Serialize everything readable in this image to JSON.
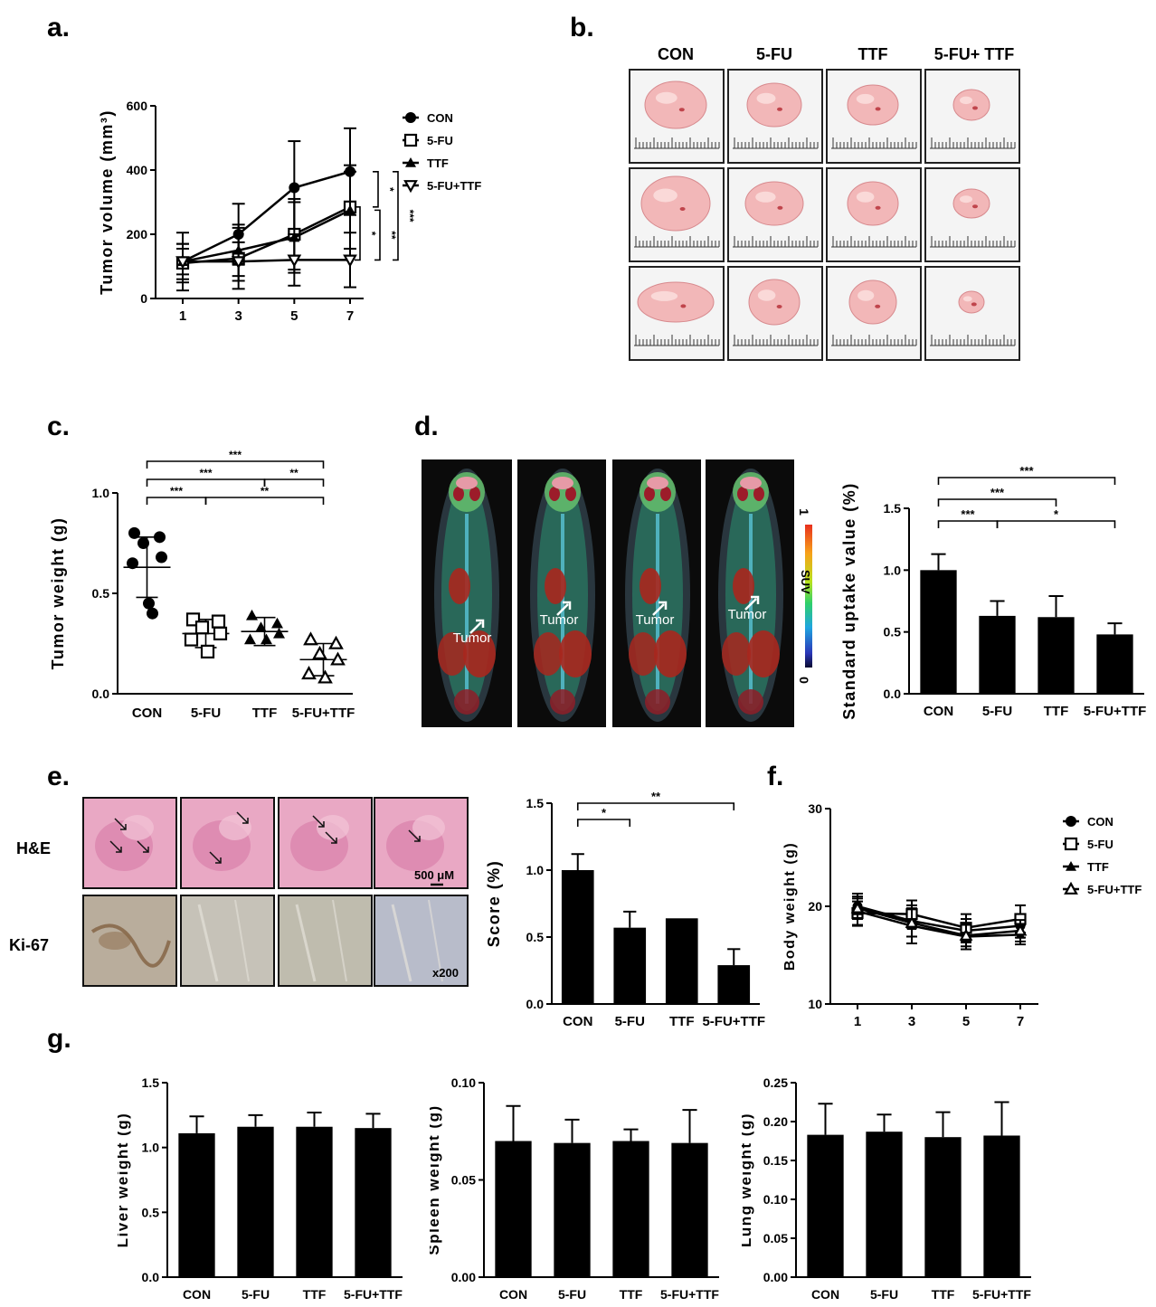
{
  "panels": {
    "a": {
      "letter": "a."
    },
    "b": {
      "letter": "b.",
      "columns": [
        "CON",
        "5-FU",
        "TTF",
        "5-FU+ TTF"
      ]
    },
    "c": {
      "letter": "c."
    },
    "d": {
      "letter": "d.",
      "tumor_label": "Tumor",
      "scale_label": "SUV",
      "scale_max": "1",
      "scale_min": "0"
    },
    "e": {
      "letter": "e.",
      "row_labels": [
        "H&E",
        "Ki-67"
      ],
      "scale_bar": "500 μM",
      "magnification": "x200"
    },
    "f": {
      "letter": "f."
    },
    "g": {
      "letter": "g."
    }
  },
  "chart_data": [
    {
      "id": "a",
      "type": "line",
      "ylabel": "Tumor volume (mm³)",
      "x": [
        1,
        3,
        5,
        7
      ],
      "xticks": [
        "1",
        "3",
        "5",
        "7"
      ],
      "ylim": [
        0,
        600
      ],
      "yticks": [
        "0",
        "200",
        "400",
        "600"
      ],
      "series": [
        {
          "name": "CON",
          "marker": "filled-circle",
          "values": [
            115,
            200,
            345,
            395
          ],
          "err": [
            90,
            95,
            145,
            135
          ]
        },
        {
          "name": "5-FU",
          "marker": "open-square",
          "values": [
            110,
            125,
            200,
            285
          ],
          "err": [
            60,
            95,
            110,
            130
          ]
        },
        {
          "name": "TTF",
          "marker": "filled-triangle",
          "values": [
            115,
            150,
            190,
            275
          ],
          "err": [
            55,
            80,
            110,
            120
          ]
        },
        {
          "name": "5-FU+TTF",
          "marker": "open-triangle-down",
          "values": [
            115,
            115,
            120,
            120
          ],
          "err": [
            40,
            60,
            80,
            85
          ]
        }
      ],
      "significance": [
        "*",
        "*",
        "**",
        "***"
      ]
    },
    {
      "id": "c",
      "type": "scatter",
      "ylabel": "Tumor weight (g)",
      "categories": [
        "CON",
        "5-FU",
        "TTF",
        "5-FU+TTF"
      ],
      "ylim": [
        0,
        1
      ],
      "yticks": [
        "0.0",
        "0.5",
        "1.0"
      ],
      "groups": [
        {
          "name": "CON",
          "marker": "filled-circle",
          "mean": 0.63,
          "sd": 0.15,
          "points": [
            0.8,
            0.78,
            0.75,
            0.68,
            0.65,
            0.45,
            0.4
          ]
        },
        {
          "name": "5-FU",
          "marker": "open-square",
          "mean": 0.3,
          "sd": 0.07,
          "points": [
            0.37,
            0.36,
            0.33,
            0.3,
            0.27,
            0.21
          ]
        },
        {
          "name": "TTF",
          "marker": "filled-triangle",
          "mean": 0.31,
          "sd": 0.07,
          "points": [
            0.39,
            0.35,
            0.33,
            0.3,
            0.27,
            0.27
          ]
        },
        {
          "name": "5-FU+TTF",
          "marker": "open-triangle",
          "mean": 0.17,
          "sd": 0.08,
          "points": [
            0.27,
            0.25,
            0.2,
            0.17,
            0.1,
            0.08
          ]
        }
      ],
      "significance": [
        "***",
        "***",
        "**",
        "***",
        "**"
      ]
    },
    {
      "id": "d",
      "type": "bar",
      "ylabel": "Standard uptake value (%)",
      "categories": [
        "CON",
        "5-FU",
        "TTF",
        "5-FU+TTF"
      ],
      "values": [
        1.0,
        0.63,
        0.62,
        0.48
      ],
      "err": [
        0.13,
        0.12,
        0.17,
        0.09
      ],
      "ylim": [
        0,
        1.5
      ],
      "yticks": [
        "0.0",
        "0.5",
        "1.0",
        "1.5"
      ],
      "significance": [
        "***",
        "***",
        "***",
        "*"
      ]
    },
    {
      "id": "e",
      "type": "bar",
      "ylabel": "Score (%)",
      "categories": [
        "CON",
        "5-FU",
        "TTF",
        "5-FU+TTF"
      ],
      "values": [
        1.0,
        0.57,
        0.64,
        0.29
      ],
      "err": [
        0.12,
        0.12,
        0.0,
        0.12
      ],
      "ylim": [
        0,
        1.5
      ],
      "yticks": [
        "0.0",
        "0.5",
        "1.0",
        "1.5"
      ],
      "significance": [
        "*",
        "**"
      ]
    },
    {
      "id": "f",
      "type": "line",
      "ylabel": "Body weight (g)",
      "x": [
        1,
        3,
        5,
        7
      ],
      "xticks": [
        "1",
        "3",
        "5",
        "7"
      ],
      "ylim": [
        10,
        30
      ],
      "yticks": [
        "10",
        "20",
        "30"
      ],
      "series": [
        {
          "name": "CON",
          "marker": "filled-circle",
          "values": [
            20.0,
            18.5,
            17.5,
            18.0
          ],
          "err": [
            1.3,
            1.6,
            1.2,
            1.2
          ]
        },
        {
          "name": "5-FU",
          "marker": "open-square",
          "values": [
            19.3,
            19.2,
            17.8,
            18.7
          ],
          "err": [
            1.2,
            1.4,
            1.4,
            1.4
          ]
        },
        {
          "name": "TTF",
          "marker": "filled-triangle",
          "values": [
            19.5,
            18.0,
            16.9,
            17.1
          ],
          "err": [
            1.5,
            1.8,
            1.3,
            1.0
          ]
        },
        {
          "name": "5-FU+TTF",
          "marker": "open-triangle",
          "values": [
            19.8,
            18.3,
            17.0,
            17.5
          ],
          "err": [
            1.0,
            1.4,
            1.1,
            1.1
          ]
        }
      ]
    },
    {
      "id": "g1",
      "type": "bar",
      "ylabel": "Liver weight (g)",
      "categories": [
        "CON",
        "5-FU",
        "TTF",
        "5-FU+TTF"
      ],
      "values": [
        1.11,
        1.16,
        1.16,
        1.15
      ],
      "err": [
        0.13,
        0.09,
        0.11,
        0.11
      ],
      "ylim": [
        0,
        1.5
      ],
      "yticks": [
        "0.0",
        "0.5",
        "1.0",
        "1.5"
      ]
    },
    {
      "id": "g2",
      "type": "bar",
      "ylabel": "Spleen weight (g)",
      "categories": [
        "CON",
        "5-FU",
        "TTF",
        "5-FU+TTF"
      ],
      "values": [
        0.07,
        0.069,
        0.07,
        0.069
      ],
      "err": [
        0.018,
        0.012,
        0.006,
        0.017
      ],
      "ylim": [
        0,
        0.1
      ],
      "yticks": [
        "0.00",
        "0.05",
        "0.10"
      ]
    },
    {
      "id": "g3",
      "type": "bar",
      "ylabel": "Lung weight (g)",
      "categories": [
        "CON",
        "5-FU",
        "TTF",
        "5-FU+TTF"
      ],
      "values": [
        0.183,
        0.187,
        0.18,
        0.182
      ],
      "err": [
        0.04,
        0.022,
        0.032,
        0.043
      ],
      "ylim": [
        0,
        0.25
      ],
      "yticks": [
        "0.00",
        "0.05",
        "0.10",
        "0.15",
        "0.20",
        "0.25"
      ]
    }
  ]
}
